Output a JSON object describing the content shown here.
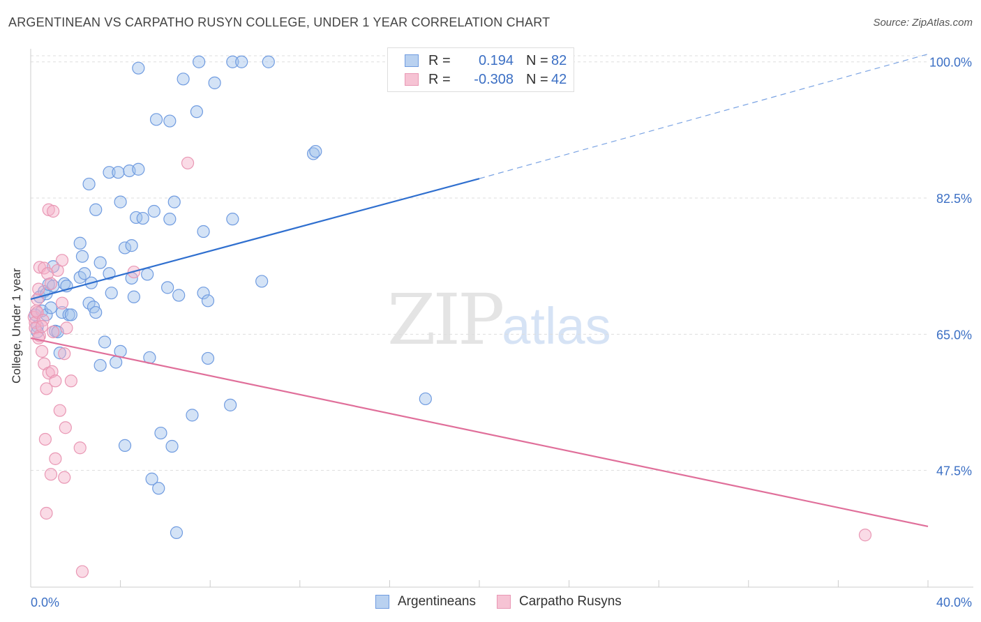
{
  "title": "ARGENTINEAN VS CARPATHO RUSYN COLLEGE, UNDER 1 YEAR CORRELATION CHART",
  "source": "Source: ZipAtlas.com",
  "watermark": {
    "zip": "ZIP",
    "atlas": "atlas"
  },
  "legend_top": {
    "rows": [
      {
        "r_label": "R =",
        "r_value": "0.194",
        "n_label": "N =",
        "n_value": "82"
      },
      {
        "r_label": "R =",
        "r_value": "-0.308",
        "n_label": "N =",
        "n_value": "42"
      }
    ]
  },
  "colors": {
    "blue": "#4a7fd4",
    "blue_fill": "#b9d1f0",
    "pink": "#e06f9a",
    "pink_fill": "#f6c3d4",
    "grid": "#dddddd"
  },
  "chart_data": {
    "type": "scatter",
    "title": "ARGENTINEAN VS CARPATHO RUSYN COLLEGE, UNDER 1 YEAR CORRELATION CHART",
    "xlabel": "",
    "ylabel": "College, Under 1 year",
    "xlim": [
      0,
      40
    ],
    "ylim": [
      32.5,
      101.5
    ],
    "x_tick_labels": [
      "0.0%",
      "40.0%"
    ],
    "y_ticks": [
      47.5,
      65.0,
      82.5,
      100.0
    ],
    "y_tick_labels": [
      "47.5%",
      "65.0%",
      "82.5%",
      "100.0%"
    ],
    "grid": true,
    "legend_position": "bottom",
    "series": [
      {
        "name": "Argentineans",
        "color": "#4a7fd4",
        "trend": {
          "x": [
            0,
            20
          ],
          "y": [
            69.5,
            85.0
          ],
          "dashed_extension_to": [
            40,
            101.0
          ]
        },
        "points": [
          [
            0.2,
            67.5
          ],
          [
            0.3,
            66.0
          ],
          [
            0.3,
            65.3
          ],
          [
            0.4,
            69.8
          ],
          [
            0.5,
            68.0
          ],
          [
            0.6,
            70.5
          ],
          [
            0.7,
            67.5
          ],
          [
            0.7,
            70.2
          ],
          [
            0.8,
            71.4
          ],
          [
            0.9,
            68.4
          ],
          [
            1.0,
            71.2
          ],
          [
            1.0,
            73.7
          ],
          [
            1.1,
            65.4
          ],
          [
            1.2,
            65.3
          ],
          [
            1.3,
            62.6
          ],
          [
            1.4,
            67.8
          ],
          [
            1.5,
            71.5
          ],
          [
            1.6,
            71.2
          ],
          [
            1.7,
            67.5
          ],
          [
            1.8,
            67.5
          ],
          [
            2.2,
            76.7
          ],
          [
            2.2,
            72.3
          ],
          [
            2.3,
            75.0
          ],
          [
            2.4,
            72.8
          ],
          [
            2.6,
            69.0
          ],
          [
            2.7,
            71.6
          ],
          [
            2.8,
            68.5
          ],
          [
            2.9,
            67.8
          ],
          [
            2.9,
            81.0
          ],
          [
            3.1,
            74.2
          ],
          [
            2.6,
            84.3
          ],
          [
            3.1,
            61.0
          ],
          [
            3.3,
            64.0
          ],
          [
            3.5,
            72.8
          ],
          [
            3.6,
            70.3
          ],
          [
            3.5,
            85.8
          ],
          [
            3.8,
            61.4
          ],
          [
            3.9,
            85.8
          ],
          [
            4.0,
            62.8
          ],
          [
            4.0,
            82.0
          ],
          [
            4.2,
            50.7
          ],
          [
            4.2,
            76.1
          ],
          [
            4.4,
            86.0
          ],
          [
            4.5,
            76.4
          ],
          [
            4.5,
            72.2
          ],
          [
            4.6,
            69.8
          ],
          [
            4.7,
            80.0
          ],
          [
            4.8,
            86.2
          ],
          [
            4.8,
            99.2
          ],
          [
            5.0,
            79.9
          ],
          [
            5.2,
            72.7
          ],
          [
            5.4,
            46.4
          ],
          [
            5.5,
            80.8
          ],
          [
            5.6,
            92.6
          ],
          [
            5.7,
            45.2
          ],
          [
            5.8,
            52.3
          ],
          [
            6.1,
            71.0
          ],
          [
            6.2,
            79.8
          ],
          [
            6.2,
            92.4
          ],
          [
            6.3,
            50.6
          ],
          [
            6.4,
            82.0
          ],
          [
            6.5,
            39.5
          ],
          [
            6.6,
            70.0
          ],
          [
            6.8,
            97.8
          ],
          [
            7.2,
            54.6
          ],
          [
            7.4,
            93.6
          ],
          [
            7.5,
            100.0
          ],
          [
            7.7,
            78.2
          ],
          [
            7.7,
            70.3
          ],
          [
            7.9,
            69.3
          ],
          [
            7.9,
            61.9
          ],
          [
            8.2,
            97.3
          ],
          [
            8.9,
            55.9
          ],
          [
            9.0,
            79.8
          ],
          [
            9.0,
            100.0
          ],
          [
            9.4,
            100.0
          ],
          [
            10.3,
            71.8
          ],
          [
            10.6,
            100.0
          ],
          [
            12.6,
            88.2
          ],
          [
            12.7,
            88.5
          ],
          [
            17.6,
            56.7
          ],
          [
            5.3,
            62.0
          ]
        ]
      },
      {
        "name": "Carpatho Rusyns",
        "color": "#e06f9a",
        "trend": {
          "x": [
            0,
            40
          ],
          "y": [
            64.5,
            40.3
          ]
        },
        "points": [
          [
            0.15,
            67.2
          ],
          [
            0.2,
            66.5
          ],
          [
            0.2,
            65.8
          ],
          [
            0.25,
            68.0
          ],
          [
            0.3,
            69.5
          ],
          [
            0.3,
            67.8
          ],
          [
            0.35,
            70.8
          ],
          [
            0.4,
            64.8
          ],
          [
            0.4,
            73.6
          ],
          [
            0.5,
            62.8
          ],
          [
            0.55,
            66.8
          ],
          [
            0.6,
            73.5
          ],
          [
            0.6,
            61.2
          ],
          [
            0.65,
            51.5
          ],
          [
            0.7,
            58.0
          ],
          [
            0.7,
            42.0
          ],
          [
            0.75,
            72.8
          ],
          [
            0.8,
            60.0
          ],
          [
            0.8,
            81.0
          ],
          [
            0.9,
            47.0
          ],
          [
            0.9,
            71.5
          ],
          [
            0.95,
            60.2
          ],
          [
            1.0,
            80.8
          ],
          [
            1.0,
            65.3
          ],
          [
            1.1,
            49.0
          ],
          [
            1.1,
            59.0
          ],
          [
            1.2,
            73.2
          ],
          [
            1.3,
            55.2
          ],
          [
            1.4,
            69.0
          ],
          [
            1.4,
            74.5
          ],
          [
            1.5,
            46.6
          ],
          [
            1.55,
            53.0
          ],
          [
            1.6,
            65.8
          ],
          [
            1.8,
            59.0
          ],
          [
            2.2,
            50.4
          ],
          [
            2.3,
            34.5
          ],
          [
            4.6,
            73.0
          ],
          [
            7.0,
            87.0
          ],
          [
            1.5,
            62.5
          ],
          [
            0.5,
            66.0
          ],
          [
            37.2,
            39.2
          ],
          [
            0.35,
            64.5
          ]
        ]
      }
    ]
  }
}
